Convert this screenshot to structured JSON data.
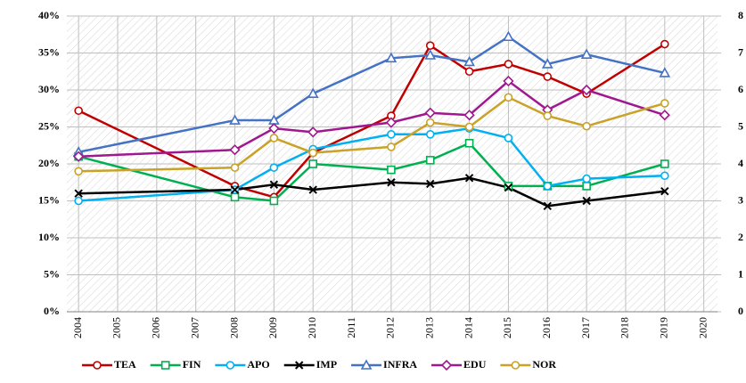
{
  "chart_data": {
    "type": "line",
    "x": [
      2004,
      2008,
      2009,
      2010,
      2012,
      2013,
      2014,
      2015,
      2016,
      2017,
      2019
    ],
    "xlim": [
      2003.7,
      2020.35
    ],
    "xticks": [
      2004,
      2005,
      2006,
      2007,
      2008,
      2009,
      2010,
      2011,
      2012,
      2013,
      2014,
      2015,
      2016,
      2017,
      2018,
      2019,
      2020
    ],
    "ylim": [
      0,
      40
    ],
    "yticks": [
      {
        "value": 0,
        "label": "0%"
      },
      {
        "value": 5,
        "label": "5%"
      },
      {
        "value": 10,
        "label": "10%"
      },
      {
        "value": 15,
        "label": "15%"
      },
      {
        "value": 20,
        "label": "20%"
      },
      {
        "value": 25,
        "label": "25%"
      },
      {
        "value": 30,
        "label": "30%"
      },
      {
        "value": 35,
        "label": "35%"
      },
      {
        "value": 40,
        "label": "40%"
      }
    ],
    "y2lim": [
      0,
      8
    ],
    "y2ticks": [
      0,
      1,
      2,
      3,
      4,
      5,
      6,
      7,
      8
    ],
    "grid": true,
    "legend": "bottom",
    "series": [
      {
        "name": "TEA",
        "color": "#c00000",
        "marker": "circle",
        "values": [
          27.2,
          17,
          15.5,
          21.5,
          26.5,
          36,
          32.5,
          33.5,
          31.8,
          29.5,
          36.2
        ]
      },
      {
        "name": "FIN",
        "color": "#00b050",
        "marker": "square",
        "values": [
          21,
          15.5,
          15,
          20,
          19.2,
          20.5,
          22.8,
          17,
          17,
          17,
          20
        ]
      },
      {
        "name": "APO",
        "color": "#00b0f0",
        "marker": "circle",
        "values": [
          15,
          16.5,
          19.5,
          22,
          24,
          24,
          24.8,
          23.5,
          17,
          18,
          18.4
        ]
      },
      {
        "name": "IMP",
        "color": "#000000",
        "marker": "x",
        "values": [
          16,
          16.5,
          17.2,
          16.5,
          17.5,
          17.3,
          18.1,
          16.8,
          14.3,
          15,
          16.3
        ]
      },
      {
        "name": "INFRA",
        "color": "#4472c4",
        "marker": "triangle",
        "values": [
          21.6,
          25.9,
          25.9,
          29.5,
          34.3,
          34.7,
          33.8,
          37.2,
          33.5,
          34.8,
          32.3
        ]
      },
      {
        "name": "EDU",
        "color": "#a0188f",
        "marker": "diamond",
        "values": [
          21,
          21.9,
          24.8,
          24.3,
          25.6,
          26.9,
          26.6,
          31.2,
          27.3,
          30,
          26.6
        ]
      },
      {
        "name": "NOR",
        "color": "#c9a227",
        "marker": "circle",
        "values": [
          19,
          19.5,
          23.5,
          21.5,
          22.3,
          25.6,
          25,
          29,
          26.5,
          25.1,
          28.2
        ]
      }
    ]
  }
}
